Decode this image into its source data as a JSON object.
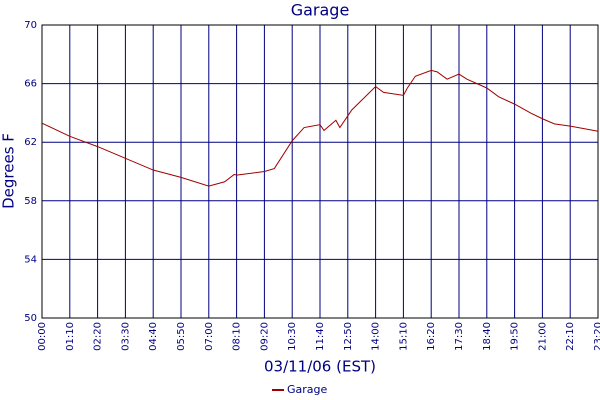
{
  "chart_data": {
    "type": "line",
    "title": "Garage",
    "xlabel": "03/11/06 (EST)",
    "ylabel": "Degrees F",
    "x": [
      0,
      70,
      140,
      210,
      280,
      350,
      420,
      460,
      484,
      490,
      560,
      585,
      630,
      660,
      700,
      710,
      740,
      750,
      780,
      840,
      860,
      910,
      920,
      940,
      980,
      995,
      1020,
      1050,
      1070,
      1120,
      1150,
      1190,
      1230,
      1260,
      1290,
      1330,
      1400
    ],
    "series": [
      {
        "name": "Garage",
        "color": "#a00000",
        "values": [
          63.3,
          62.4,
          61.7,
          60.9,
          60.1,
          59.6,
          59.0,
          59.3,
          59.8,
          59.75,
          60.0,
          60.2,
          62.1,
          63.0,
          63.2,
          62.8,
          63.5,
          63.0,
          64.2,
          65.8,
          65.4,
          65.2,
          65.7,
          66.5,
          66.9,
          66.8,
          66.3,
          66.65,
          66.3,
          65.7,
          65.1,
          64.6,
          64.0,
          63.6,
          63.25,
          63.1,
          62.75
        ]
      }
    ],
    "xlim": [
      0,
      1400
    ],
    "xticks": [
      {
        "value": 0,
        "label": "00:00"
      },
      {
        "value": 70,
        "label": "01:10"
      },
      {
        "value": 140,
        "label": "02:20"
      },
      {
        "value": 210,
        "label": "03:30"
      },
      {
        "value": 280,
        "label": "04:40"
      },
      {
        "value": 350,
        "label": "05:50"
      },
      {
        "value": 420,
        "label": "07:00"
      },
      {
        "value": 490,
        "label": "08:10"
      },
      {
        "value": 560,
        "label": "09:20"
      },
      {
        "value": 630,
        "label": "10:30"
      },
      {
        "value": 700,
        "label": "11:40"
      },
      {
        "value": 770,
        "label": "12:50"
      },
      {
        "value": 840,
        "label": "14:00"
      },
      {
        "value": 910,
        "label": "15:10"
      },
      {
        "value": 980,
        "label": "16:20"
      },
      {
        "value": 1050,
        "label": "17:30"
      },
      {
        "value": 1120,
        "label": "18:40"
      },
      {
        "value": 1190,
        "label": "19:50"
      },
      {
        "value": 1260,
        "label": "21:00"
      },
      {
        "value": 1330,
        "label": "22:10"
      },
      {
        "value": 1400,
        "label": "23:20"
      }
    ],
    "ylim": [
      50,
      70
    ],
    "yticks": [
      50,
      54,
      58,
      62,
      66,
      70
    ],
    "grid": true,
    "legend": "bottom"
  }
}
